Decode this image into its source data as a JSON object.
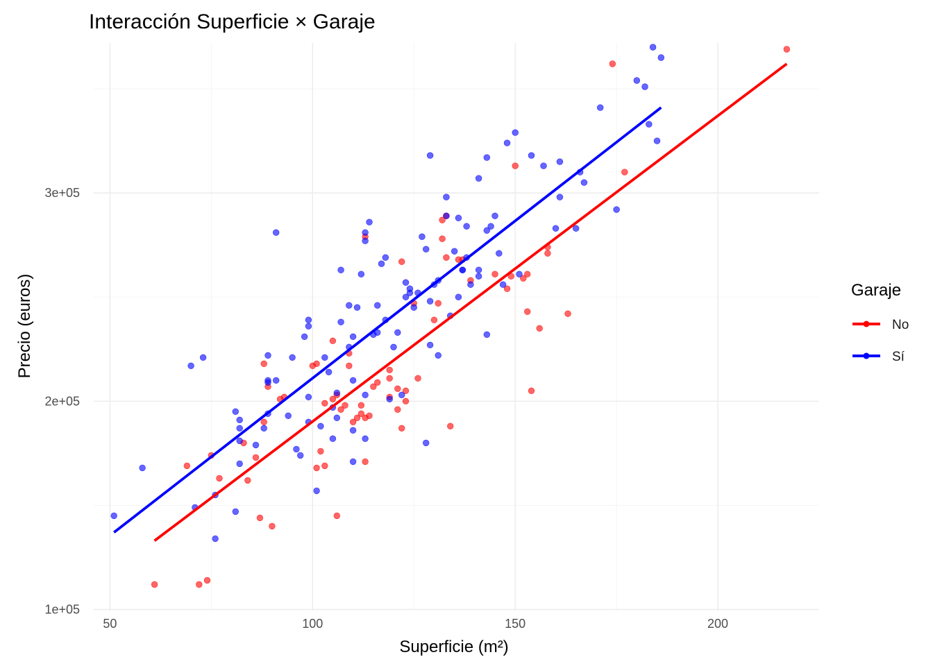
{
  "chart_data": {
    "type": "scatter",
    "title": "Interacción Superficie × Garaje",
    "xlabel": "Superficie (m²)",
    "ylabel": "Precio (euros)",
    "xlim": [
      46,
      225
    ],
    "ylim": [
      99500,
      372000
    ],
    "x_ticks": [
      50,
      100,
      150,
      200
    ],
    "x_tick_labels": [
      "50",
      "100",
      "150",
      "200"
    ],
    "y_ticks": [
      100000,
      200000,
      300000
    ],
    "y_tick_labels": [
      "1e+05",
      "2e+05",
      "3e+05"
    ],
    "grid": true,
    "legend": {
      "title": "Garaje",
      "position": "right"
    },
    "series": [
      {
        "name": "No",
        "color": "#ff0000",
        "points": [
          [
            61,
            112000
          ],
          [
            72,
            112000
          ],
          [
            74,
            114000
          ],
          [
            69,
            169000
          ],
          [
            75,
            174000
          ],
          [
            77,
            163000
          ],
          [
            84,
            162000
          ],
          [
            83,
            180000
          ],
          [
            86,
            173000
          ],
          [
            87,
            144000
          ],
          [
            88,
            190000
          ],
          [
            88,
            218000
          ],
          [
            89,
            207000
          ],
          [
            90,
            140000
          ],
          [
            92,
            201000
          ],
          [
            93,
            202000
          ],
          [
            100,
            217000
          ],
          [
            101,
            218000
          ],
          [
            101,
            168000
          ],
          [
            102,
            176000
          ],
          [
            103,
            169000
          ],
          [
            103,
            199000
          ],
          [
            105,
            229000
          ],
          [
            105,
            201000
          ],
          [
            106,
            203000
          ],
          [
            106,
            145000
          ],
          [
            107,
            196000
          ],
          [
            108,
            198000
          ],
          [
            109,
            217000
          ],
          [
            109,
            223000
          ],
          [
            110,
            190000
          ],
          [
            111,
            192000
          ],
          [
            112,
            198000
          ],
          [
            112,
            194000
          ],
          [
            113,
            171000
          ],
          [
            113,
            192000
          ],
          [
            113,
            279000
          ],
          [
            114,
            193000
          ],
          [
            115,
            207000
          ],
          [
            116,
            209000
          ],
          [
            119,
            215000
          ],
          [
            119,
            211000
          ],
          [
            119,
            202000
          ],
          [
            121,
            196000
          ],
          [
            121,
            206000
          ],
          [
            122,
            187000
          ],
          [
            122,
            267000
          ],
          [
            123,
            200000
          ],
          [
            123,
            205000
          ],
          [
            125,
            247000
          ],
          [
            126,
            211000
          ],
          [
            130,
            239000
          ],
          [
            131,
            247000
          ],
          [
            132,
            278000
          ],
          [
            132,
            287000
          ],
          [
            133,
            269000
          ],
          [
            133,
            289000
          ],
          [
            134,
            188000
          ],
          [
            136,
            268000
          ],
          [
            137,
            268000
          ],
          [
            139,
            258000
          ],
          [
            145,
            261000
          ],
          [
            148,
            254000
          ],
          [
            149,
            260000
          ],
          [
            150,
            313000
          ],
          [
            152,
            259000
          ],
          [
            153,
            261000
          ],
          [
            153,
            243000
          ],
          [
            154,
            205000
          ],
          [
            156,
            235000
          ],
          [
            158,
            274000
          ],
          [
            158,
            271000
          ],
          [
            163,
            242000
          ],
          [
            174,
            362000
          ],
          [
            177,
            310000
          ],
          [
            217,
            369000
          ]
        ],
        "fit": {
          "x": [
            61,
            217
          ],
          "y": [
            133000,
            362000
          ]
        }
      },
      {
        "name": "Sí",
        "color": "#0000ff",
        "points": [
          [
            51,
            145000
          ],
          [
            58,
            168000
          ],
          [
            70,
            217000
          ],
          [
            71,
            149000
          ],
          [
            73,
            221000
          ],
          [
            76,
            155000
          ],
          [
            76,
            134000
          ],
          [
            81,
            147000
          ],
          [
            81,
            195000
          ],
          [
            82,
            187000
          ],
          [
            82,
            191000
          ],
          [
            82,
            181000
          ],
          [
            82,
            170000
          ],
          [
            86,
            179000
          ],
          [
            88,
            187000
          ],
          [
            89,
            209000
          ],
          [
            89,
            210000
          ],
          [
            89,
            222000
          ],
          [
            89,
            194000
          ],
          [
            91,
            210000
          ],
          [
            91,
            281000
          ],
          [
            94,
            193000
          ],
          [
            95,
            221000
          ],
          [
            96,
            177000
          ],
          [
            97,
            174000
          ],
          [
            98,
            231000
          ],
          [
            99,
            239000
          ],
          [
            99,
            236000
          ],
          [
            99,
            190000
          ],
          [
            99,
            202000
          ],
          [
            101,
            157000
          ],
          [
            102,
            188000
          ],
          [
            103,
            221000
          ],
          [
            104,
            214000
          ],
          [
            105,
            197000
          ],
          [
            106,
            204000
          ],
          [
            106,
            192000
          ],
          [
            105,
            182000
          ],
          [
            107,
            238000
          ],
          [
            107,
            263000
          ],
          [
            109,
            246000
          ],
          [
            109,
            226000
          ],
          [
            110,
            231000
          ],
          [
            110,
            210000
          ],
          [
            110,
            186000
          ],
          [
            110,
            171000
          ],
          [
            111,
            245000
          ],
          [
            112,
            261000
          ],
          [
            113,
            182000
          ],
          [
            113,
            203000
          ],
          [
            113,
            277000
          ],
          [
            113,
            281000
          ],
          [
            114,
            286000
          ],
          [
            115,
            232000
          ],
          [
            116,
            233000
          ],
          [
            116,
            246000
          ],
          [
            117,
            266000
          ],
          [
            118,
            269000
          ],
          [
            118,
            239000
          ],
          [
            119,
            201000
          ],
          [
            120,
            226000
          ],
          [
            121,
            233000
          ],
          [
            122,
            203000
          ],
          [
            123,
            250000
          ],
          [
            123,
            257000
          ],
          [
            124,
            254000
          ],
          [
            124,
            252000
          ],
          [
            125,
            245000
          ],
          [
            126,
            252000
          ],
          [
            127,
            279000
          ],
          [
            128,
            180000
          ],
          [
            128,
            273000
          ],
          [
            129,
            318000
          ],
          [
            129,
            227000
          ],
          [
            129,
            248000
          ],
          [
            130,
            256000
          ],
          [
            131,
            258000
          ],
          [
            131,
            222000
          ],
          [
            133,
            298000
          ],
          [
            133,
            289000
          ],
          [
            134,
            241000
          ],
          [
            135,
            272000
          ],
          [
            136,
            250000
          ],
          [
            136,
            288000
          ],
          [
            137,
            263000
          ],
          [
            137,
            263000
          ],
          [
            138,
            284000
          ],
          [
            138,
            269000
          ],
          [
            139,
            256000
          ],
          [
            141,
            307000
          ],
          [
            141,
            263000
          ],
          [
            141,
            260000
          ],
          [
            143,
            232000
          ],
          [
            143,
            282000
          ],
          [
            143,
            317000
          ],
          [
            144,
            284000
          ],
          [
            145,
            289000
          ],
          [
            146,
            271000
          ],
          [
            147,
            256000
          ],
          [
            148,
            324000
          ],
          [
            150,
            329000
          ],
          [
            151,
            261000
          ],
          [
            154,
            318000
          ],
          [
            157,
            313000
          ],
          [
            160,
            283000
          ],
          [
            161,
            298000
          ],
          [
            161,
            315000
          ],
          [
            165,
            283000
          ],
          [
            166,
            310000
          ],
          [
            167,
            305000
          ],
          [
            171,
            341000
          ],
          [
            175,
            292000
          ],
          [
            180,
            354000
          ],
          [
            182,
            351000
          ],
          [
            183,
            333000
          ],
          [
            184,
            370000
          ],
          [
            185,
            325000
          ],
          [
            186,
            365000
          ]
        ],
        "fit": {
          "x": [
            51,
            186
          ],
          "y": [
            137000,
            341000
          ]
        }
      }
    ]
  }
}
